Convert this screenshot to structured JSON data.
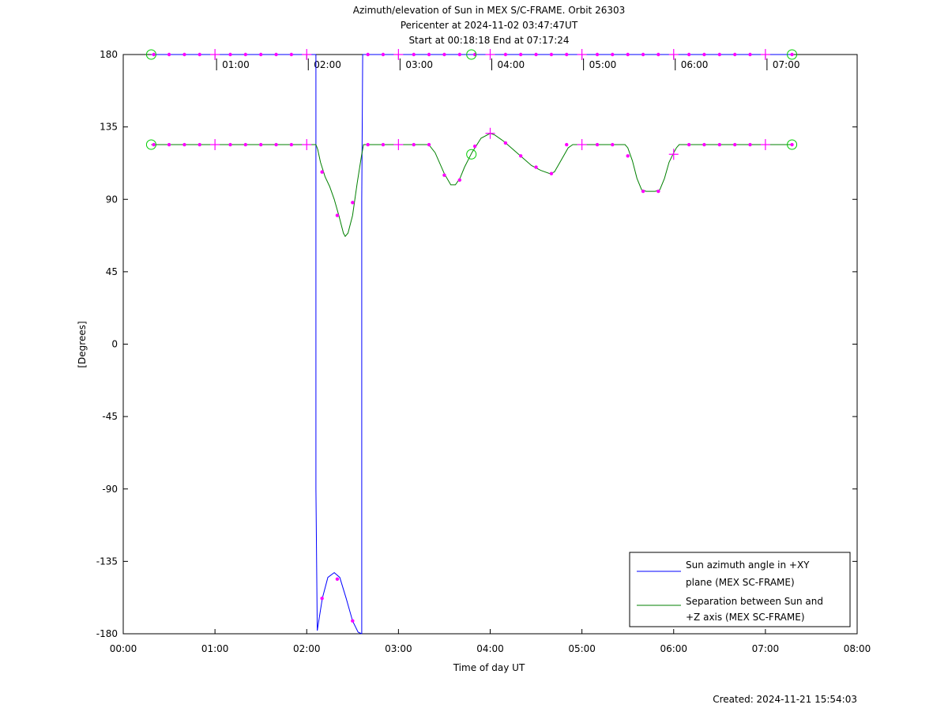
{
  "chart_data": {
    "type": "line",
    "title_lines": [
      "Azimuth/elevation of Sun in MEX S/C-FRAME.  Orbit 26303",
      "Pericenter at 2024-11-02 03:47:47UT",
      "Start at 00:18:18 End at 07:17:24"
    ],
    "xlabel": "Time of day UT",
    "ylabel": "[Degrees]",
    "xlim": [
      0,
      8
    ],
    "ylim": [
      -180,
      180
    ],
    "x_ticks": [
      0,
      1,
      2,
      3,
      4,
      5,
      6,
      7,
      8
    ],
    "x_tick_labels": [
      "00:00",
      "01:00",
      "02:00",
      "03:00",
      "04:00",
      "05:00",
      "06:00",
      "07:00",
      "08:00"
    ],
    "y_ticks": [
      180,
      135,
      90,
      45,
      0,
      -45,
      -90,
      -135,
      -180
    ],
    "y_tick_labels": [
      "180",
      "135",
      "90",
      "45",
      "0",
      "-45",
      "-90",
      "-135",
      "-180"
    ],
    "top_time_labels": [
      {
        "x": 1.0,
        "text": "01:00"
      },
      {
        "x": 2.0,
        "text": "02:00"
      },
      {
        "x": 3.0,
        "text": "03:00"
      },
      {
        "x": 4.0,
        "text": "04:00"
      },
      {
        "x": 5.0,
        "text": "05:00"
      },
      {
        "x": 6.0,
        "text": "06:00"
      },
      {
        "x": 7.0,
        "text": "07:00"
      }
    ],
    "series": [
      {
        "name": "Sun azimuth angle in +XY plane (MEX SC-FRAME)",
        "legend_lines": [
          "Sun azimuth angle in +XY",
          "plane (MEX SC-FRAME)"
        ],
        "color": "#0000ff",
        "segments": [
          [
            [
              0.305,
              180
            ],
            [
              2.1,
              180
            ]
          ],
          [
            [
              2.1,
              180
            ],
            [
              2.1,
              90
            ],
            [
              2.1,
              -90
            ],
            [
              2.115,
              -178
            ]
          ],
          [
            [
              2.115,
              -178
            ],
            [
              2.17,
              -158
            ],
            [
              2.23,
              -145
            ],
            [
              2.3,
              -142
            ],
            [
              2.36,
              -145
            ],
            [
              2.43,
              -158
            ],
            [
              2.5,
              -172
            ],
            [
              2.56,
              -179
            ],
            [
              2.6,
              -180
            ]
          ],
          [
            [
              2.6,
              -180
            ],
            [
              2.6,
              -90
            ],
            [
              2.6,
              90
            ],
            [
              2.61,
              180
            ]
          ],
          [
            [
              2.61,
              180
            ],
            [
              7.29,
              180
            ]
          ]
        ]
      },
      {
        "name": "Separation between Sun and +Z axis (MEX SC-FRAME)",
        "legend_lines": [
          "Separation between Sun and",
          "+Z axis (MEX SC-FRAME)"
        ],
        "color": "#008000",
        "points": [
          [
            0.305,
            124
          ],
          [
            2.1,
            124
          ],
          [
            2.12,
            121
          ],
          [
            2.15,
            113
          ],
          [
            2.2,
            104
          ],
          [
            2.25,
            98
          ],
          [
            2.3,
            90
          ],
          [
            2.35,
            80
          ],
          [
            2.4,
            69
          ],
          [
            2.42,
            67
          ],
          [
            2.45,
            69
          ],
          [
            2.5,
            80
          ],
          [
            2.55,
            100
          ],
          [
            2.6,
            118
          ],
          [
            2.62,
            124
          ],
          [
            3.33,
            124
          ],
          [
            3.4,
            119
          ],
          [
            3.5,
            106
          ],
          [
            3.57,
            99
          ],
          [
            3.62,
            99
          ],
          [
            3.67,
            103
          ],
          [
            3.72,
            110
          ],
          [
            3.8,
            119
          ],
          [
            3.9,
            128
          ],
          [
            4.0,
            131
          ],
          [
            4.05,
            130
          ],
          [
            4.15,
            126
          ],
          [
            4.25,
            121
          ],
          [
            4.35,
            116
          ],
          [
            4.45,
            111
          ],
          [
            4.55,
            108
          ],
          [
            4.65,
            106
          ],
          [
            4.7,
            107
          ],
          [
            4.75,
            112
          ],
          [
            4.85,
            122
          ],
          [
            4.9,
            124
          ],
          [
            5.47,
            124
          ],
          [
            5.5,
            122
          ],
          [
            5.55,
            114
          ],
          [
            5.6,
            103
          ],
          [
            5.65,
            96
          ],
          [
            5.7,
            95
          ],
          [
            5.8,
            95
          ],
          [
            5.85,
            96
          ],
          [
            5.9,
            103
          ],
          [
            5.95,
            113
          ],
          [
            6.0,
            119
          ],
          [
            6.03,
            122
          ],
          [
            6.06,
            124
          ],
          [
            7.29,
            124
          ]
        ]
      }
    ],
    "markers": {
      "color": "#ff00ff",
      "azimuth_dots": [
        [
          0.333,
          180
        ],
        [
          0.5,
          180
        ],
        [
          0.667,
          180
        ],
        [
          0.833,
          180
        ],
        [
          1.167,
          180
        ],
        [
          1.333,
          180
        ],
        [
          1.5,
          180
        ],
        [
          1.667,
          180
        ],
        [
          1.833,
          180
        ],
        [
          2.167,
          -158
        ],
        [
          2.333,
          -146
        ],
        [
          2.5,
          -172
        ],
        [
          2.667,
          180
        ],
        [
          2.833,
          180
        ],
        [
          3.167,
          180
        ],
        [
          3.333,
          180
        ],
        [
          3.5,
          180
        ],
        [
          3.667,
          180
        ],
        [
          3.833,
          180
        ],
        [
          4.167,
          180
        ],
        [
          4.333,
          180
        ],
        [
          4.5,
          180
        ],
        [
          4.667,
          180
        ],
        [
          4.833,
          180
        ],
        [
          5.167,
          180
        ],
        [
          5.333,
          180
        ],
        [
          5.5,
          180
        ],
        [
          5.667,
          180
        ],
        [
          5.833,
          180
        ],
        [
          6.167,
          180
        ],
        [
          6.333,
          180
        ],
        [
          6.5,
          180
        ],
        [
          6.667,
          180
        ],
        [
          6.833,
          180
        ],
        [
          7.29,
          180
        ]
      ],
      "azimuth_hour_ticks": [
        [
          1,
          180
        ],
        [
          2,
          180
        ],
        [
          3,
          180
        ],
        [
          4,
          180
        ],
        [
          5,
          180
        ],
        [
          6,
          180
        ],
        [
          7,
          180
        ]
      ],
      "separation_dots": [
        [
          0.333,
          124
        ],
        [
          0.5,
          124
        ],
        [
          0.667,
          124
        ],
        [
          0.833,
          124
        ],
        [
          1.167,
          124
        ],
        [
          1.333,
          124
        ],
        [
          1.5,
          124
        ],
        [
          1.667,
          124
        ],
        [
          1.833,
          124
        ],
        [
          2.167,
          107
        ],
        [
          2.333,
          80
        ],
        [
          2.5,
          88
        ],
        [
          2.667,
          124
        ],
        [
          2.833,
          124
        ],
        [
          3.167,
          124
        ],
        [
          3.333,
          124
        ],
        [
          3.5,
          105
        ],
        [
          3.667,
          102
        ],
        [
          3.833,
          123
        ],
        [
          4.167,
          125
        ],
        [
          4.333,
          117
        ],
        [
          4.5,
          110
        ],
        [
          4.667,
          106
        ],
        [
          4.833,
          124
        ],
        [
          5.167,
          124
        ],
        [
          5.333,
          124
        ],
        [
          5.5,
          117
        ],
        [
          5.667,
          95
        ],
        [
          5.833,
          95
        ],
        [
          6.167,
          124
        ],
        [
          6.333,
          124
        ],
        [
          6.5,
          124
        ],
        [
          6.667,
          124
        ],
        [
          6.833,
          124
        ],
        [
          7.29,
          124
        ]
      ],
      "separation_hour_ticks": [
        [
          1,
          124
        ],
        [
          2,
          124
        ],
        [
          3,
          124
        ],
        [
          4,
          131
        ],
        [
          5,
          124
        ],
        [
          6,
          118
        ],
        [
          7,
          124
        ]
      ],
      "circles_color": "#00cc00",
      "circles": [
        [
          0.305,
          180
        ],
        [
          0.305,
          124
        ],
        [
          3.795,
          180
        ],
        [
          3.795,
          118
        ],
        [
          7.29,
          180
        ],
        [
          7.29,
          124
        ]
      ]
    },
    "legend_placement": "bottom-right",
    "grid": false,
    "created_text": "Created: 2024-11-21 15:54:03"
  }
}
